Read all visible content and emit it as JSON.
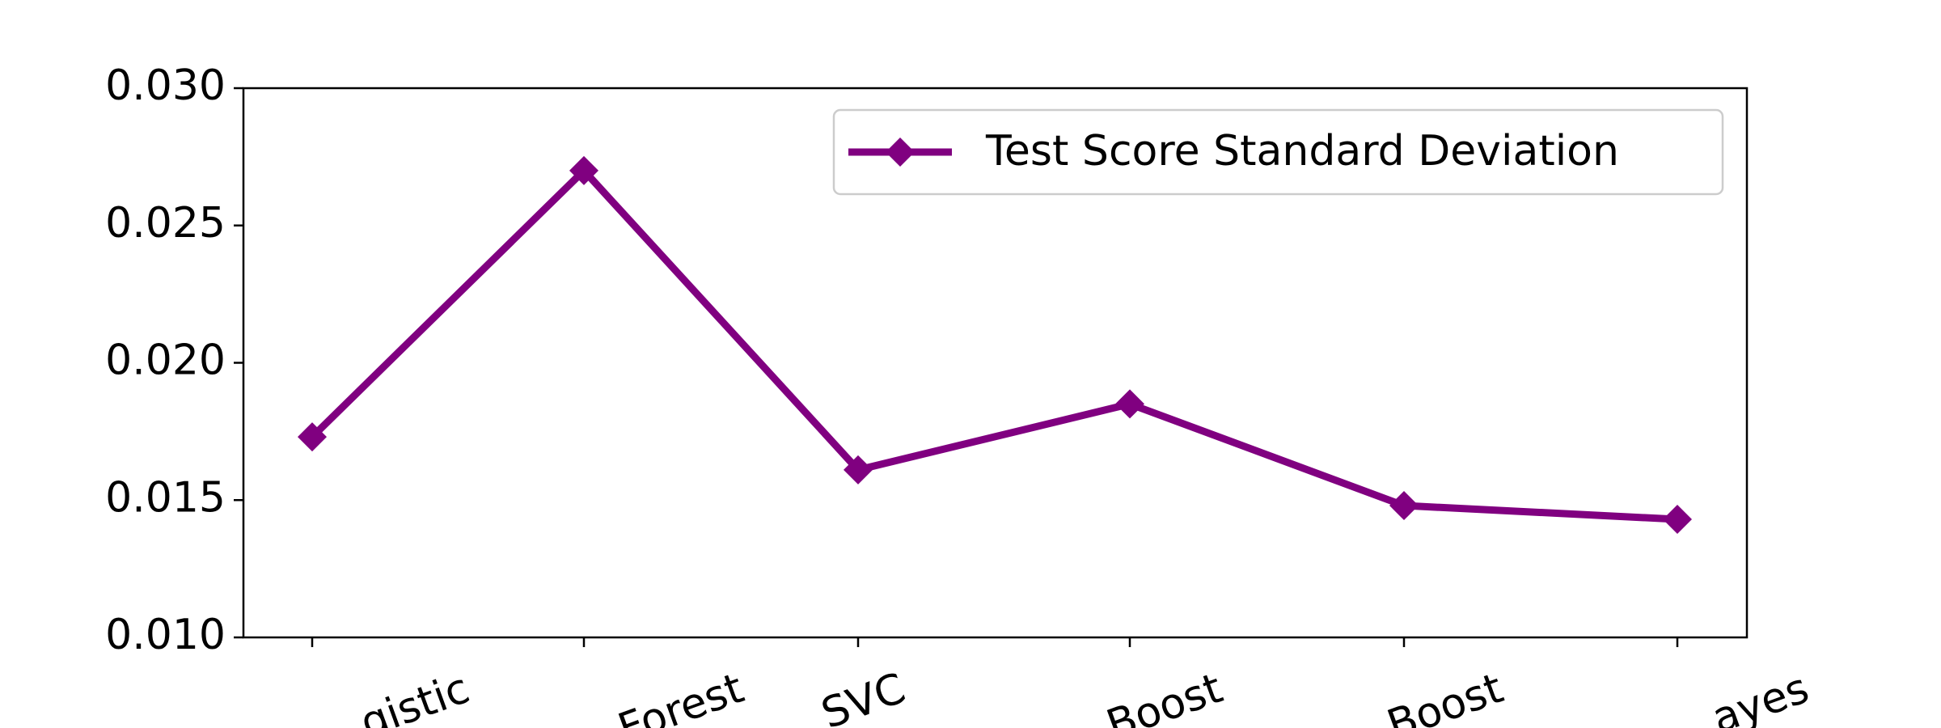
{
  "chart_data": {
    "type": "line",
    "categories": [
      "gistic",
      "Forest",
      "SVC",
      "Boost",
      "Boost",
      "ayes"
    ],
    "series": [
      {
        "name": "Test Score Standard Deviation",
        "color": "#800080",
        "values": [
          0.0173,
          0.027,
          0.0161,
          0.0185,
          0.0148,
          0.0143
        ]
      }
    ],
    "ylim": [
      0.01,
      0.03
    ],
    "yticks": [
      {
        "value": 0.01,
        "label": "0.010"
      },
      {
        "value": 0.015,
        "label": "0.015"
      },
      {
        "value": 0.02,
        "label": "0.020"
      },
      {
        "value": 0.025,
        "label": "0.025"
      },
      {
        "value": 0.03,
        "label": "0.030"
      }
    ],
    "grid": false,
    "legend": "upper right"
  }
}
